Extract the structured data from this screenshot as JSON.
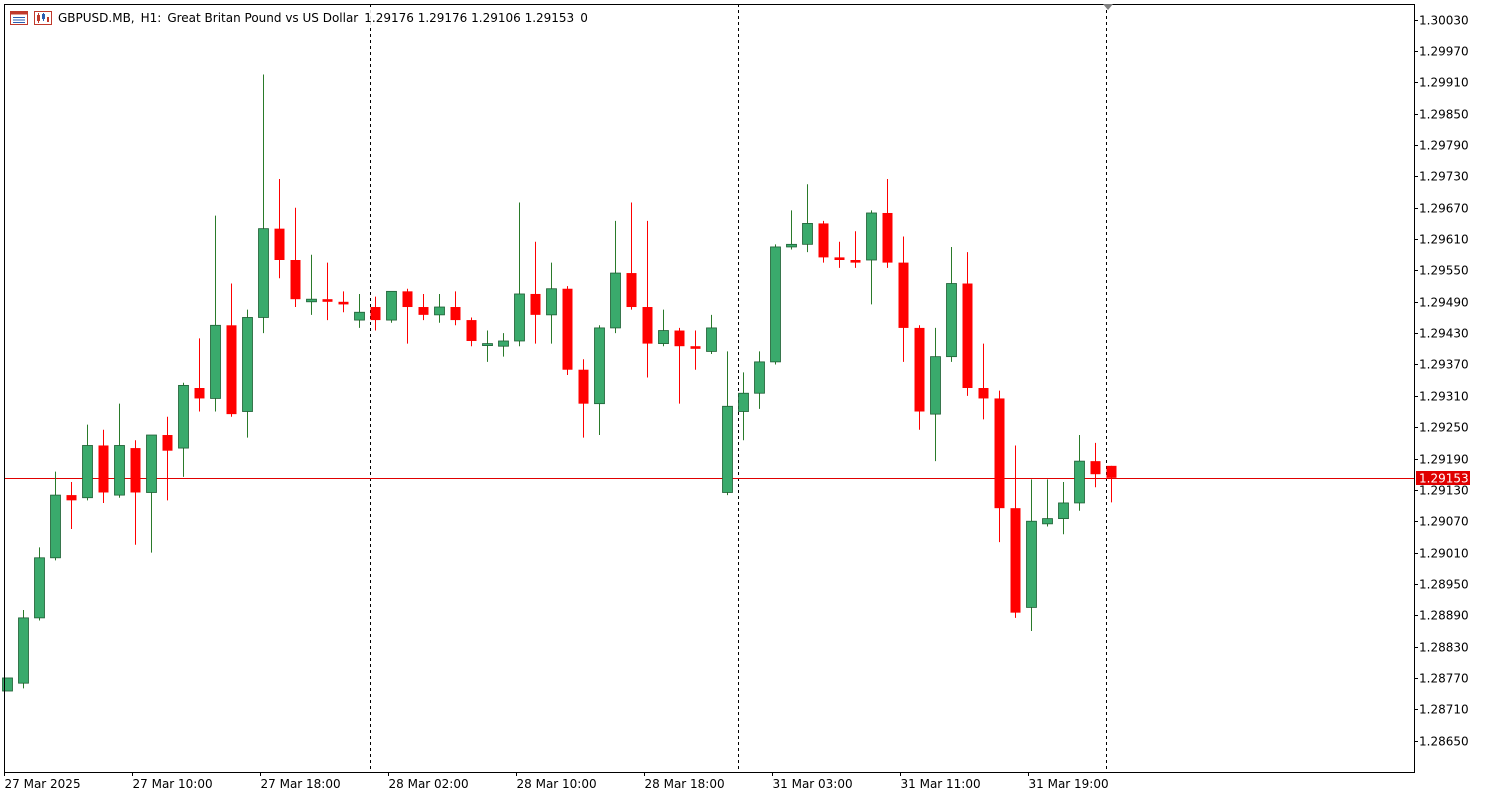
{
  "header": {
    "symbol": "GBPUSD.MB,",
    "timeframe": "H1:",
    "description": "Great Britan Pound vs US Dollar",
    "ohlc": "1.29176 1.29176 1.29106 1.29153",
    "volume": "0",
    "icons": [
      "window-menu-icon",
      "chart-type-icon"
    ]
  },
  "colors": {
    "bull": "#3aaa6c",
    "bull_wick": "#2a7a2a",
    "bear": "#ff0000",
    "bid_line": "#e00000",
    "axis": "#000000",
    "separator": "#000000"
  },
  "chart_data": {
    "type": "candlestick",
    "symbol": "GBPUSD.MB",
    "timeframe": "H1",
    "ylim": [
      1.2859,
      1.3006
    ],
    "y_ticks": [
      "1.30030",
      "1.29970",
      "1.29910",
      "1.29850",
      "1.29790",
      "1.29730",
      "1.29670",
      "1.29610",
      "1.29550",
      "1.29490",
      "1.29430",
      "1.29370",
      "1.29310",
      "1.29250",
      "1.29190",
      "1.29130",
      "1.29070",
      "1.29010",
      "1.28950",
      "1.28890",
      "1.28830",
      "1.28770",
      "1.28710",
      "1.28650"
    ],
    "x_ticks": [
      {
        "label": "27 Mar 2025",
        "index": 0
      },
      {
        "label": "27 Mar 10:00",
        "index": 8
      },
      {
        "label": "27 Mar 18:00",
        "index": 16
      },
      {
        "label": "28 Mar 02:00",
        "index": 24
      },
      {
        "label": "28 Mar 10:00",
        "index": 32
      },
      {
        "label": "28 Mar 18:00",
        "index": 40
      },
      {
        "label": "31 Mar 03:00",
        "index": 48
      },
      {
        "label": "31 Mar 11:00",
        "index": 56
      },
      {
        "label": "31 Mar 19:00",
        "index": 64
      }
    ],
    "separators": [
      22,
      45,
      68
    ],
    "current_price": "1.29153",
    "current_price_value": 1.29153,
    "candles": [
      {
        "o": 1.28745,
        "h": 1.2877,
        "l": 1.28745,
        "c": 1.2877
      },
      {
        "o": 1.2876,
        "h": 1.289,
        "l": 1.2875,
        "c": 1.28885
      },
      {
        "o": 1.28885,
        "h": 1.2902,
        "l": 1.2888,
        "c": 1.29
      },
      {
        "o": 1.29,
        "h": 1.29165,
        "l": 1.28995,
        "c": 1.2912
      },
      {
        "o": 1.2912,
        "h": 1.29145,
        "l": 1.29055,
        "c": 1.2911
      },
      {
        "o": 1.29115,
        "h": 1.29255,
        "l": 1.2911,
        "c": 1.29215
      },
      {
        "o": 1.29215,
        "h": 1.29245,
        "l": 1.29105,
        "c": 1.29125
      },
      {
        "o": 1.2912,
        "h": 1.29295,
        "l": 1.29115,
        "c": 1.29215
      },
      {
        "o": 1.2921,
        "h": 1.29225,
        "l": 1.29025,
        "c": 1.29125
      },
      {
        "o": 1.29125,
        "h": 1.29235,
        "l": 1.2901,
        "c": 1.29235
      },
      {
        "o": 1.29235,
        "h": 1.2927,
        "l": 1.2911,
        "c": 1.29205
      },
      {
        "o": 1.2921,
        "h": 1.29335,
        "l": 1.29155,
        "c": 1.2933
      },
      {
        "o": 1.29325,
        "h": 1.2942,
        "l": 1.2928,
        "c": 1.29305
      },
      {
        "o": 1.29305,
        "h": 1.29655,
        "l": 1.2928,
        "c": 1.29445
      },
      {
        "o": 1.29445,
        "h": 1.29525,
        "l": 1.2927,
        "c": 1.29275
      },
      {
        "o": 1.2928,
        "h": 1.29475,
        "l": 1.2923,
        "c": 1.2946
      },
      {
        "o": 1.2946,
        "h": 1.29925,
        "l": 1.2943,
        "c": 1.2963
      },
      {
        "o": 1.2963,
        "h": 1.29725,
        "l": 1.29535,
        "c": 1.2957
      },
      {
        "o": 1.2957,
        "h": 1.2967,
        "l": 1.2948,
        "c": 1.29495
      },
      {
        "o": 1.2949,
        "h": 1.2958,
        "l": 1.29465,
        "c": 1.29495
      },
      {
        "o": 1.29495,
        "h": 1.29565,
        "l": 1.29455,
        "c": 1.2949
      },
      {
        "o": 1.2949,
        "h": 1.2951,
        "l": 1.2947,
        "c": 1.29485
      },
      {
        "o": 1.29455,
        "h": 1.29505,
        "l": 1.2944,
        "c": 1.2947
      },
      {
        "o": 1.2948,
        "h": 1.295,
        "l": 1.29435,
        "c": 1.29455
      },
      {
        "o": 1.29455,
        "h": 1.2951,
        "l": 1.2945,
        "c": 1.2951
      },
      {
        "o": 1.2951,
        "h": 1.29515,
        "l": 1.2941,
        "c": 1.2948
      },
      {
        "o": 1.2948,
        "h": 1.29505,
        "l": 1.29455,
        "c": 1.29465
      },
      {
        "o": 1.29465,
        "h": 1.29505,
        "l": 1.2945,
        "c": 1.2948
      },
      {
        "o": 1.2948,
        "h": 1.2951,
        "l": 1.29445,
        "c": 1.29455
      },
      {
        "o": 1.29455,
        "h": 1.2946,
        "l": 1.29405,
        "c": 1.29415
      },
      {
        "o": 1.2941,
        "h": 1.29435,
        "l": 1.29375,
        "c": 1.2941
      },
      {
        "o": 1.29405,
        "h": 1.2943,
        "l": 1.29385,
        "c": 1.29415
      },
      {
        "o": 1.29415,
        "h": 1.2968,
        "l": 1.29405,
        "c": 1.29505
      },
      {
        "o": 1.29505,
        "h": 1.29605,
        "l": 1.2941,
        "c": 1.29465
      },
      {
        "o": 1.29465,
        "h": 1.29565,
        "l": 1.2941,
        "c": 1.29515
      },
      {
        "o": 1.29515,
        "h": 1.2952,
        "l": 1.2935,
        "c": 1.2936
      },
      {
        "o": 1.2936,
        "h": 1.2938,
        "l": 1.2923,
        "c": 1.29295
      },
      {
        "o": 1.29295,
        "h": 1.29445,
        "l": 1.29235,
        "c": 1.2944
      },
      {
        "o": 1.2944,
        "h": 1.29645,
        "l": 1.2943,
        "c": 1.29545
      },
      {
        "o": 1.29545,
        "h": 1.2968,
        "l": 1.29475,
        "c": 1.2948
      },
      {
        "o": 1.2948,
        "h": 1.29645,
        "l": 1.29345,
        "c": 1.2941
      },
      {
        "o": 1.2941,
        "h": 1.29475,
        "l": 1.29405,
        "c": 1.29435
      },
      {
        "o": 1.29435,
        "h": 1.2944,
        "l": 1.29295,
        "c": 1.29405
      },
      {
        "o": 1.29405,
        "h": 1.29435,
        "l": 1.2936,
        "c": 1.294
      },
      {
        "o": 1.29395,
        "h": 1.29465,
        "l": 1.2939,
        "c": 1.2944
      },
      {
        "o": 1.29125,
        "h": 1.29395,
        "l": 1.2912,
        "c": 1.2929
      },
      {
        "o": 1.2928,
        "h": 1.29355,
        "l": 1.29225,
        "c": 1.29315
      },
      {
        "o": 1.29315,
        "h": 1.29395,
        "l": 1.29285,
        "c": 1.29375
      },
      {
        "o": 1.29375,
        "h": 1.296,
        "l": 1.2937,
        "c": 1.29595
      },
      {
        "o": 1.29595,
        "h": 1.29665,
        "l": 1.2959,
        "c": 1.296
      },
      {
        "o": 1.296,
        "h": 1.29715,
        "l": 1.29585,
        "c": 1.2964
      },
      {
        "o": 1.2964,
        "h": 1.29645,
        "l": 1.29565,
        "c": 1.29575
      },
      {
        "o": 1.29575,
        "h": 1.29605,
        "l": 1.29555,
        "c": 1.2957
      },
      {
        "o": 1.2957,
        "h": 1.29625,
        "l": 1.29555,
        "c": 1.29565
      },
      {
        "o": 1.2957,
        "h": 1.29665,
        "l": 1.29485,
        "c": 1.2966
      },
      {
        "o": 1.2966,
        "h": 1.29725,
        "l": 1.29555,
        "c": 1.29565
      },
      {
        "o": 1.29565,
        "h": 1.29615,
        "l": 1.29375,
        "c": 1.2944
      },
      {
        "o": 1.2944,
        "h": 1.29445,
        "l": 1.29245,
        "c": 1.2928
      },
      {
        "o": 1.29275,
        "h": 1.2944,
        "l": 1.29185,
        "c": 1.29385
      },
      {
        "o": 1.29385,
        "h": 1.29595,
        "l": 1.29375,
        "c": 1.29525
      },
      {
        "o": 1.29525,
        "h": 1.29585,
        "l": 1.2931,
        "c": 1.29325
      },
      {
        "o": 1.29325,
        "h": 1.2941,
        "l": 1.29265,
        "c": 1.29305
      },
      {
        "o": 1.29305,
        "h": 1.2932,
        "l": 1.2903,
        "c": 1.29095
      },
      {
        "o": 1.29095,
        "h": 1.29215,
        "l": 1.28885,
        "c": 1.28895
      },
      {
        "o": 1.28905,
        "h": 1.2915,
        "l": 1.2886,
        "c": 1.2907
      },
      {
        "o": 1.29065,
        "h": 1.2915,
        "l": 1.2906,
        "c": 1.29075
      },
      {
        "o": 1.29075,
        "h": 1.29145,
        "l": 1.29045,
        "c": 1.29105
      },
      {
        "o": 1.29105,
        "h": 1.29235,
        "l": 1.2909,
        "c": 1.29185
      },
      {
        "o": 1.29185,
        "h": 1.2922,
        "l": 1.29135,
        "c": 1.2916
      },
      {
        "o": 1.29176,
        "h": 1.29176,
        "l": 1.29106,
        "c": 1.29153
      }
    ]
  }
}
